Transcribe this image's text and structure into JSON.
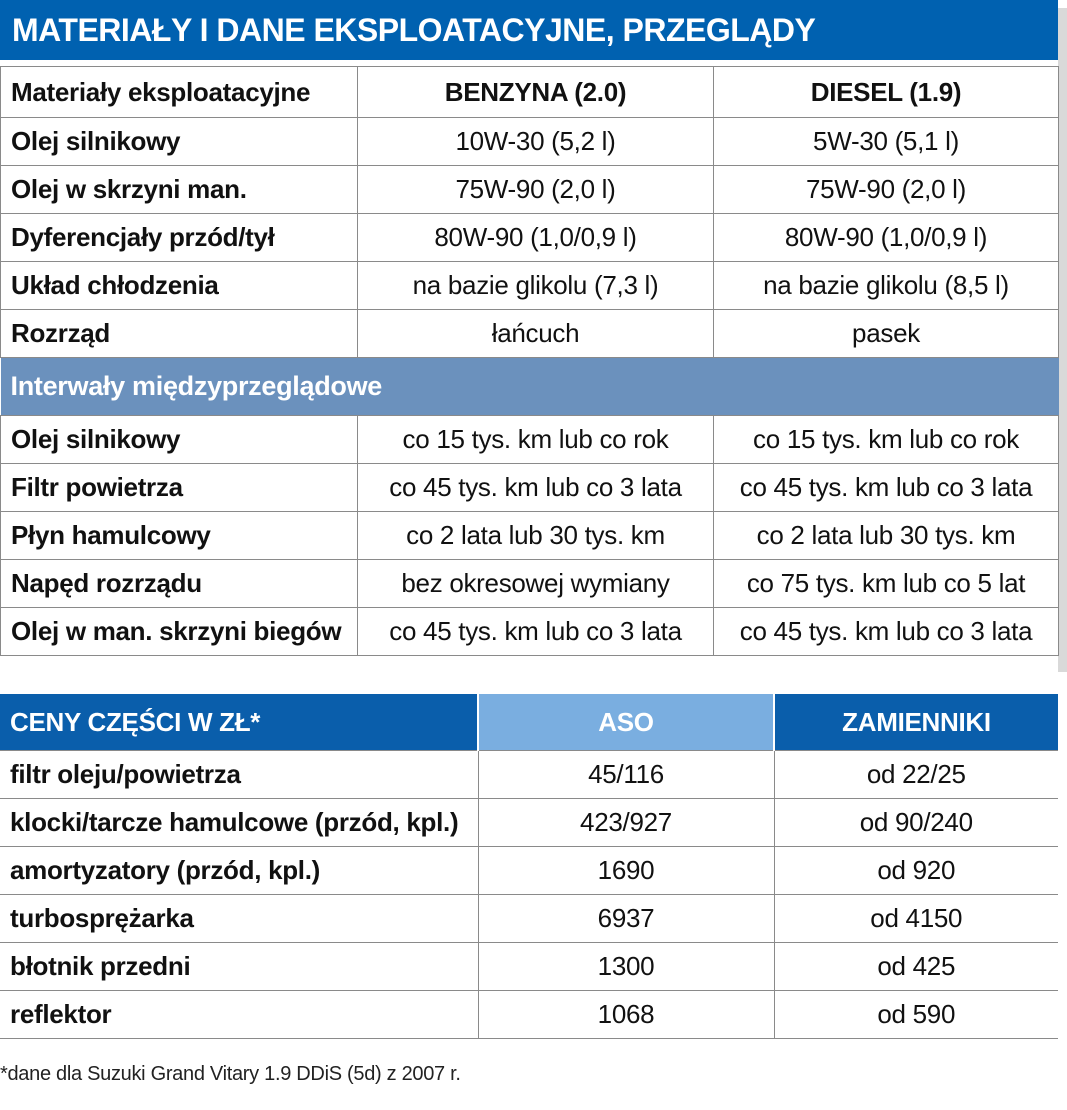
{
  "title": "MATERIAŁY I DANE EKSPLOATACYJNE, PRZEGLĄDY",
  "materials": {
    "headers": [
      "Materiały eksploatacyjne",
      "BENZYNA (2.0)",
      "DIESEL (1.9)"
    ],
    "rows": [
      [
        "Olej silnikowy",
        "10W-30 (5,2 l)",
        "5W-30 (5,1 l)"
      ],
      [
        "Olej w skrzyni man.",
        "75W-90 (2,0 l)",
        "75W-90 (2,0 l)"
      ],
      [
        "Dyferencjały przód/tył",
        "80W-90 (1,0/0,9 l)",
        "80W-90 (1,0/0,9 l)"
      ],
      [
        "Układ chłodzenia",
        "na bazie glikolu (7,3 l)",
        "na bazie glikolu (8,5 l)"
      ],
      [
        "Rozrząd",
        "łańcuch",
        "pasek"
      ]
    ]
  },
  "intervals": {
    "section_label": "Interwały międzyprzeglądowe",
    "rows": [
      [
        "Olej silnikowy",
        "co 15 tys. km lub co rok",
        "co 15 tys. km lub co rok"
      ],
      [
        "Filtr powietrza",
        "co 45 tys. km lub co 3 lata",
        "co 45 tys. km lub co 3 lata"
      ],
      [
        "Płyn hamulcowy",
        "co 2 lata lub 30 tys. km",
        "co 2 lata lub 30 tys. km"
      ],
      [
        "Napęd rozrządu",
        "bez okresowej wymiany",
        "co 75 tys. km lub co 5 lat"
      ],
      [
        "Olej w man. skrzyni biegów",
        "co 45 tys. km lub co 3 lata",
        "co 45 tys. km lub co 3 lata"
      ]
    ]
  },
  "prices": {
    "headers": [
      "CENY CZĘŚCI W ZŁ*",
      "ASO",
      "ZAMIENNIKI"
    ],
    "rows": [
      [
        "filtr oleju/powietrza",
        "45/116",
        "od 22/25"
      ],
      [
        "klocki/tarcze hamulcowe (przód, kpl.)",
        "423/927",
        "od 90/240"
      ],
      [
        "amortyzatory (przód, kpl.)",
        "1690",
        "od 920"
      ],
      [
        "turbosprężarka",
        "6937",
        "od 4150"
      ],
      [
        "błotnik przedni",
        "1300",
        "od 425"
      ],
      [
        "reflektor",
        "1068",
        "od 590"
      ]
    ]
  },
  "footnote": "*dane dla Suzuki Grand Vitary 1.9 DDiS (5d) z 2007 r."
}
